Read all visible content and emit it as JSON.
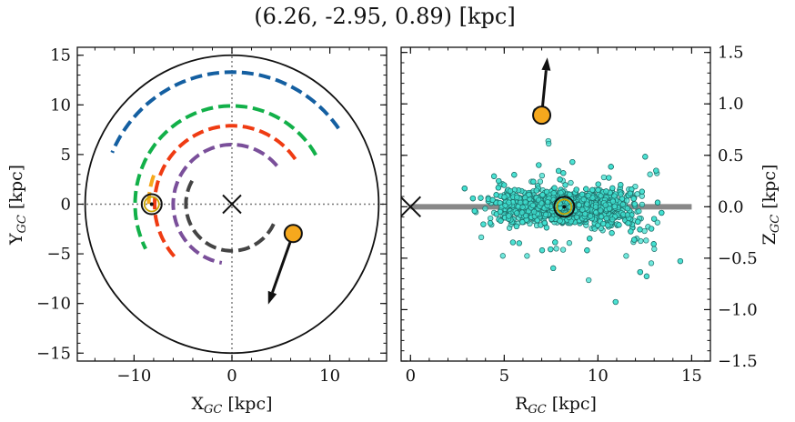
{
  "title": "(6.26, -2.95, 0.89) [kpc]",
  "chart_data": [
    {
      "type": "scatter",
      "panel": "left",
      "xlabel": "X",
      "xlabel_sub": "GC",
      "xlabel_unit": " [kpc]",
      "ylabel": "Y",
      "ylabel_sub": "GC",
      "ylabel_unit": " [kpc]",
      "xlim": [
        -15.8,
        15.8
      ],
      "ylim": [
        -15.8,
        15.8
      ],
      "xticks": [
        -10,
        0,
        10
      ],
      "xtick_labels": [
        "−10",
        "0",
        "10"
      ],
      "yticks": [
        -15,
        -10,
        -5,
        0,
        5,
        10,
        15
      ],
      "ytick_labels": [
        "−15",
        "−10",
        "−5",
        "0",
        "5",
        "10",
        "15"
      ],
      "boundary_circle_radius": 15,
      "galactic_center": [
        0,
        0
      ],
      "sun": [
        -8.2,
        0
      ],
      "object": [
        6.26,
        -2.95
      ],
      "velocity_arrow": {
        "from": [
          6.26,
          -2.95
        ],
        "to": [
          3.7,
          -10.1
        ]
      },
      "spiral_arms": [
        {
          "color": "#145fa1",
          "r": 13.3,
          "theta_start": 35,
          "theta_end": 157
        },
        {
          "color": "#12b049",
          "r": 9.9,
          "theta_start": 30,
          "theta_end": 207
        },
        {
          "color": "#ef3b12",
          "r": 7.9,
          "theta_start": 35,
          "theta_end": 225
        },
        {
          "color": "#7a4f9a",
          "r": 6.0,
          "theta_start": 40,
          "theta_end": 260
        },
        {
          "color": "#444444",
          "r": 4.7,
          "theta_start": 150,
          "theta_end": 335
        },
        {
          "color": "#f6a81d",
          "r": 8.5,
          "theta_start": 160,
          "theta_end": 182
        }
      ]
    },
    {
      "type": "scatter",
      "panel": "right",
      "xlabel": "R",
      "xlabel_sub": "GC",
      "xlabel_unit": " [kpc]",
      "ylabel": "Z",
      "ylabel_sub": "GC",
      "ylabel_unit": " [kpc]",
      "xlim": [
        -0.5,
        16
      ],
      "ylim": [
        -1.5,
        1.55
      ],
      "xticks": [
        0,
        5,
        10,
        15
      ],
      "xtick_labels": [
        "0",
        "5",
        "10",
        "15"
      ],
      "yticks": [
        -1.5,
        -1.0,
        -0.5,
        0.0,
        0.5,
        1.0,
        1.5
      ],
      "ytick_labels": [
        "−1.5",
        "−1.0",
        "−0.5",
        "0.0",
        "0.5",
        "1.0",
        "1.5"
      ],
      "disk_line": {
        "x": [
          0,
          15
        ],
        "y": 0
      },
      "galactic_center": [
        0,
        0
      ],
      "sun": [
        8.2,
        0
      ],
      "object": [
        7.0,
        0.89
      ],
      "velocity_arrow": {
        "from": [
          7.0,
          0.89
        ],
        "to": [
          7.3,
          1.45
        ]
      },
      "point_color": "#40e0d0",
      "point_count": 2500
    }
  ]
}
